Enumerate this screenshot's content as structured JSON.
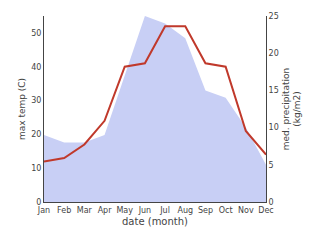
{
  "chart_data": {
    "type": "line",
    "categories": [
      "Jan",
      "Feb",
      "Mar",
      "Apr",
      "May",
      "Jun",
      "Jul",
      "Aug",
      "Sep",
      "Oct",
      "Nov",
      "Dec"
    ],
    "series": [
      {
        "type": "area",
        "axis": "y2",
        "color": "#c8cff5",
        "values": [
          9,
          8,
          8,
          9,
          17,
          25,
          24,
          22,
          15,
          14,
          10,
          5
        ]
      },
      {
        "type": "line",
        "color": "#c0392b",
        "values": [
          12,
          13,
          17,
          24,
          40,
          41,
          52,
          52,
          41,
          40,
          21,
          14
        ]
      }
    ],
    "xlabel": "date (month)",
    "ylabel": "max temp (C)",
    "y2label": "med. precipitation\n(kg/m2)",
    "ylim": [
      0,
      55
    ],
    "yticks": [
      0,
      10,
      20,
      30,
      40,
      50
    ],
    "y2lim": [
      0,
      25
    ],
    "y2ticks": [
      0,
      5,
      10,
      15,
      20,
      25
    ],
    "grid": false
  }
}
